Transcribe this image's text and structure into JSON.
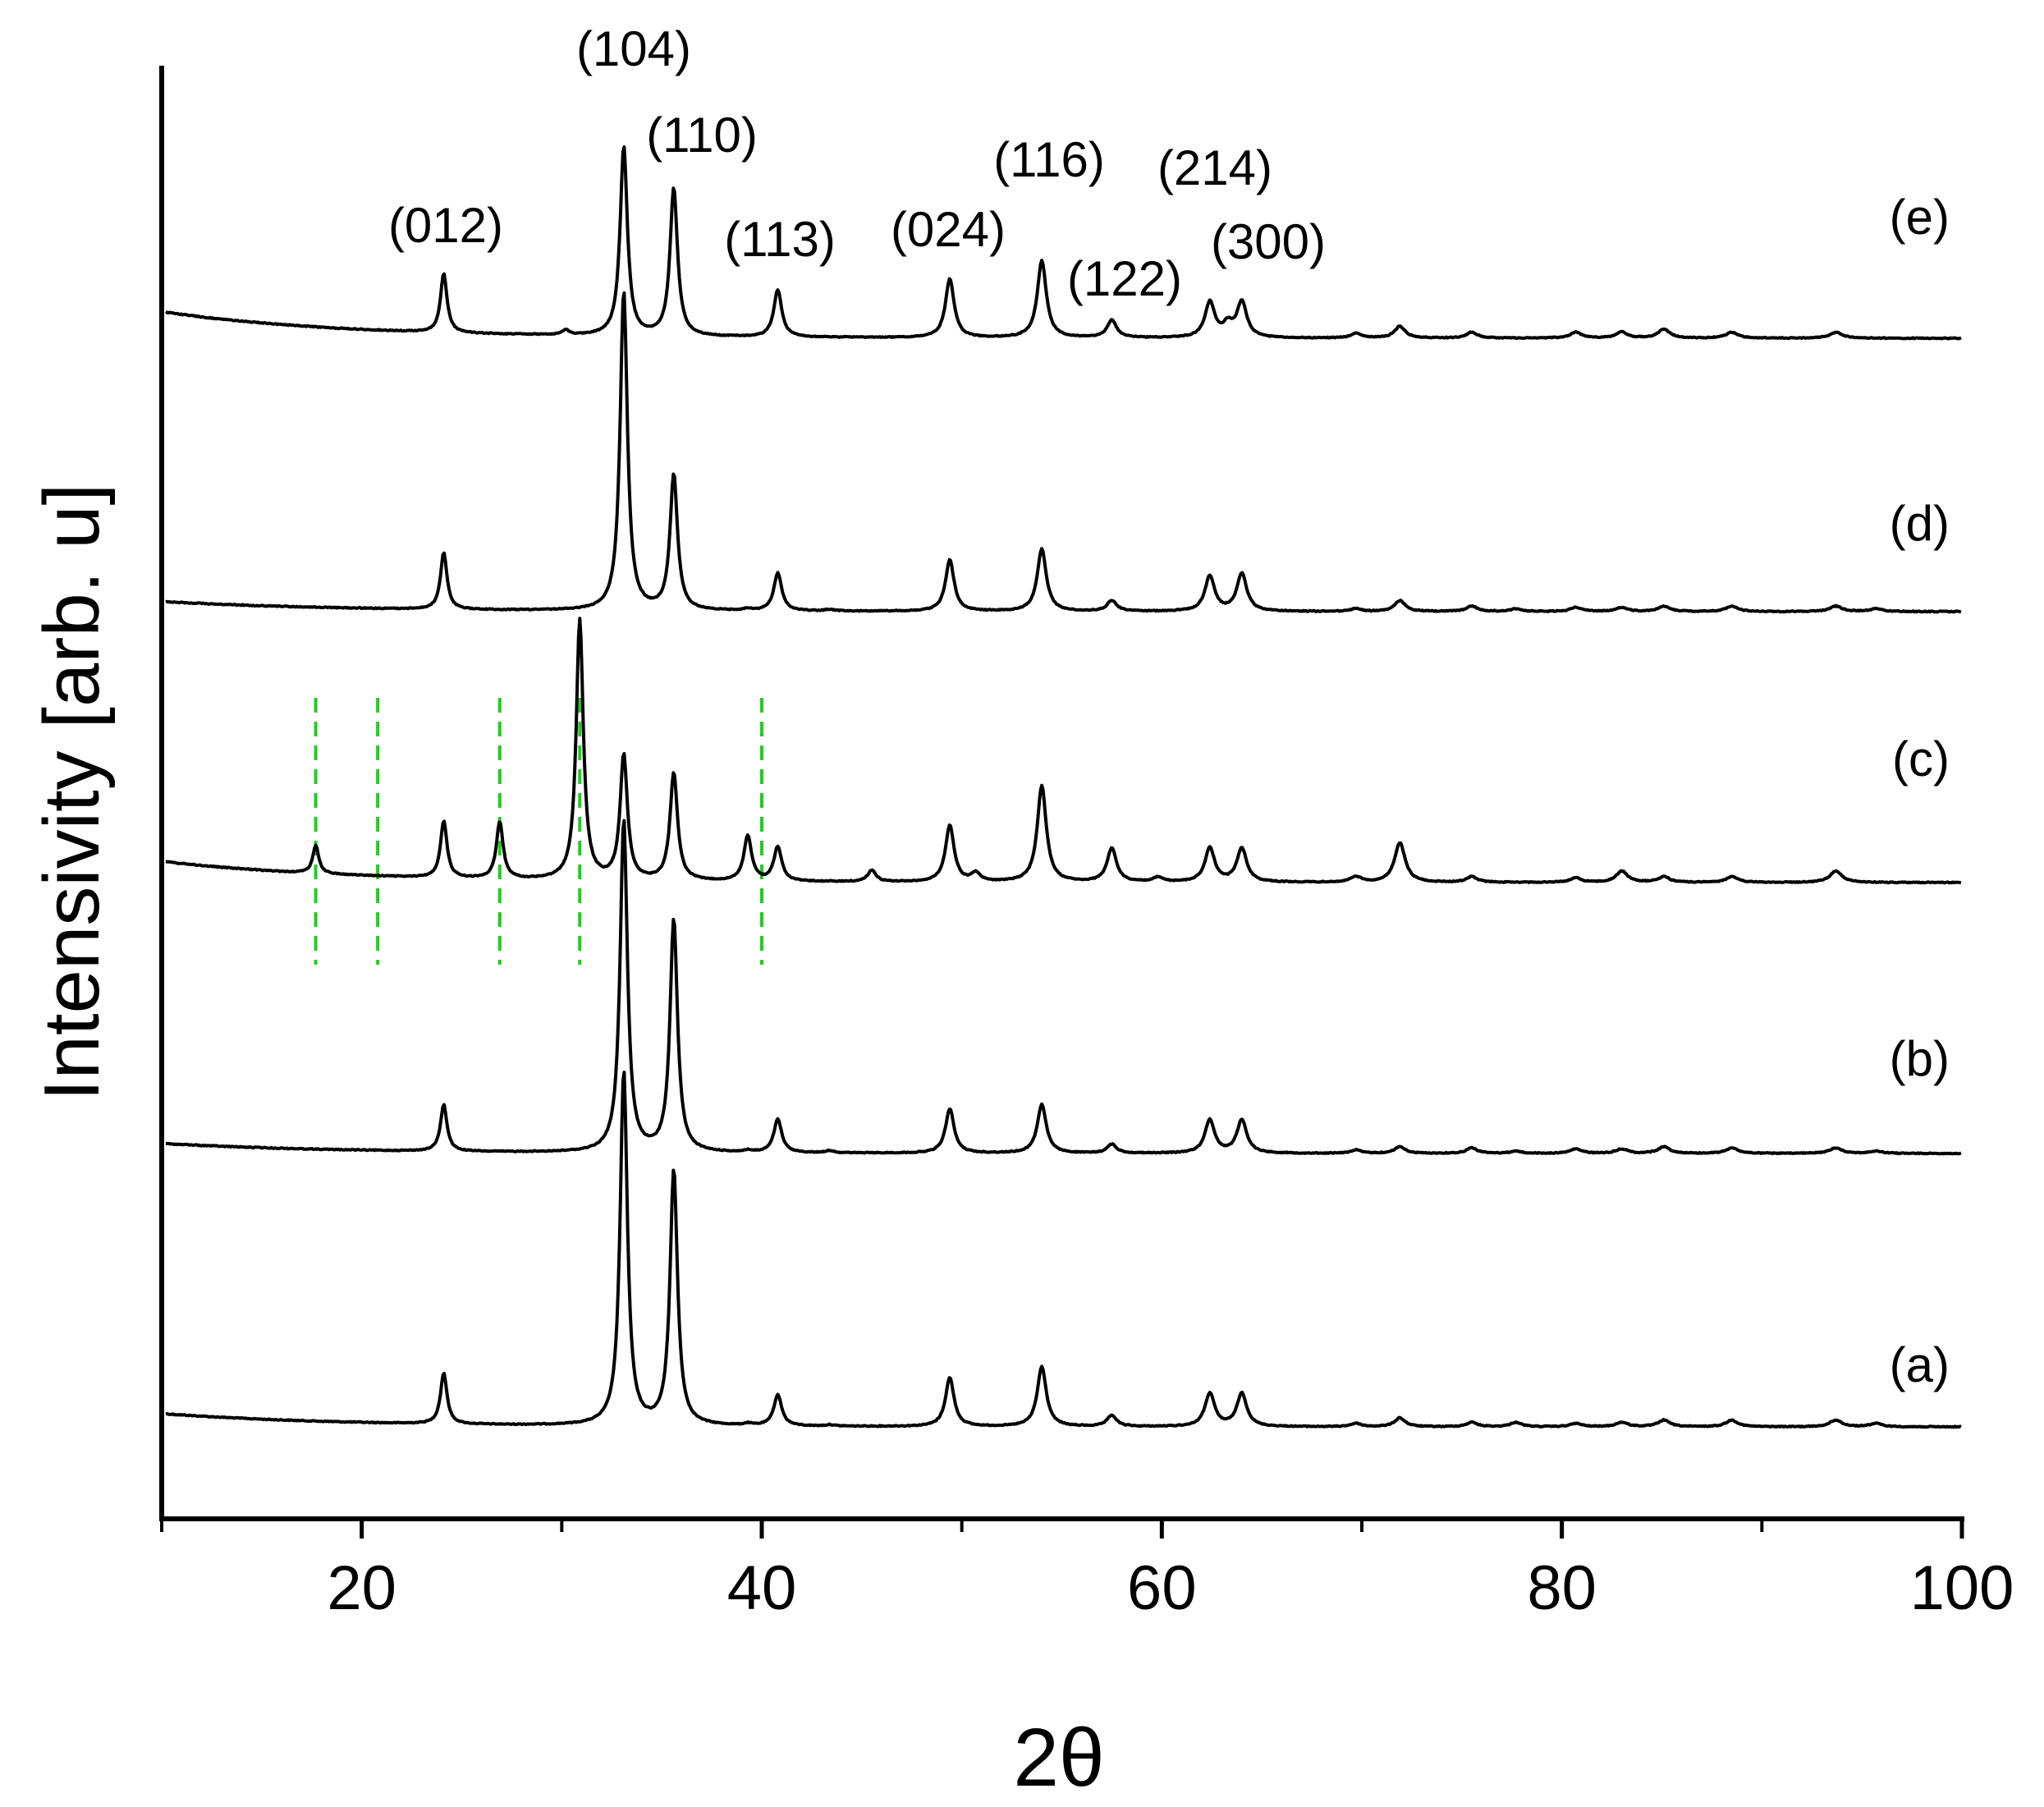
{
  "chart_data": {
    "type": "line",
    "title": "",
    "xlabel": "2θ",
    "ylabel": "Intensivity [arb. u]",
    "xlim": [
      10,
      100
    ],
    "x_ticks": [
      20,
      40,
      60,
      80,
      100
    ],
    "x_minor_ticks": [
      10,
      30,
      50,
      70,
      90
    ],
    "y_ticks": [],
    "grid": false,
    "legend": "none",
    "line_color": "#000000",
    "marker_line_color": "#22cc22",
    "marker_lines_2theta": [
      17.7,
      20.8,
      26.9,
      30.9,
      40.0
    ],
    "reflections": [
      {
        "hkl": "(012)",
        "two_theta": 24.1
      },
      {
        "hkl": "(104)",
        "two_theta": 33.1
      },
      {
        "hkl": "(110)",
        "two_theta": 35.6
      },
      {
        "hkl": "(113)",
        "two_theta": 40.8
      },
      {
        "hkl": "(024)",
        "two_theta": 49.4
      },
      {
        "hkl": "(116)",
        "two_theta": 54.0
      },
      {
        "hkl": "(122)",
        "two_theta": 57.5
      },
      {
        "hkl": "(214)",
        "two_theta": 62.4
      },
      {
        "hkl": "(300)",
        "two_theta": 64.0
      }
    ],
    "series": [
      {
        "name": "(a)",
        "baseline_start": 0.8,
        "peaks": [
          [
            24.1,
            23
          ],
          [
            33.1,
            160
          ],
          [
            35.6,
            115
          ],
          [
            40.8,
            14
          ],
          [
            49.4,
            22
          ],
          [
            54.0,
            27
          ],
          [
            57.5,
            5
          ],
          [
            62.4,
            15
          ],
          [
            64.0,
            15
          ],
          [
            69.7,
            1.5
          ],
          [
            71.9,
            4
          ],
          [
            75.5,
            2
          ],
          [
            77.7,
            2
          ],
          [
            80.7,
            1.5
          ],
          [
            83.0,
            2
          ],
          [
            85.1,
            3
          ],
          [
            88.5,
            3
          ],
          [
            93.7,
            3
          ],
          [
            95.7,
            1.5
          ],
          [
            39.3,
            0.8
          ],
          [
            43.4,
            0.6
          ]
        ]
      },
      {
        "name": "(b)",
        "baseline_start": 0.6,
        "peaks": [
          [
            24.1,
            21
          ],
          [
            33.1,
            150
          ],
          [
            35.6,
            105
          ],
          [
            40.8,
            15
          ],
          [
            49.4,
            20
          ],
          [
            54.0,
            22
          ],
          [
            57.5,
            4
          ],
          [
            62.4,
            15
          ],
          [
            64.0,
            15
          ],
          [
            69.7,
            1.5
          ],
          [
            71.9,
            3
          ],
          [
            75.5,
            2.5
          ],
          [
            77.7,
            1
          ],
          [
            80.7,
            2
          ],
          [
            83.0,
            2
          ],
          [
            85.1,
            3
          ],
          [
            88.5,
            2.5
          ],
          [
            93.7,
            2.5
          ],
          [
            95.7,
            1
          ],
          [
            39.3,
            0.8
          ],
          [
            43.4,
            1
          ]
        ]
      },
      {
        "name": "(c)",
        "baseline_start": 0.5,
        "peaks": [
          [
            17.7,
            5
          ],
          [
            24.1,
            10
          ],
          [
            26.9,
            10
          ],
          [
            30.9,
            46
          ],
          [
            33.1,
            22
          ],
          [
            35.6,
            19
          ],
          [
            39.3,
            8
          ],
          [
            40.8,
            6
          ],
          [
            45.5,
            2
          ],
          [
            49.4,
            10
          ],
          [
            50.7,
            1.5
          ],
          [
            54.0,
            17
          ],
          [
            57.5,
            6
          ],
          [
            59.8,
            0.8
          ],
          [
            62.4,
            6
          ],
          [
            64.0,
            6
          ],
          [
            69.7,
            1
          ],
          [
            71.9,
            7
          ],
          [
            75.5,
            1
          ],
          [
            80.7,
            0.8
          ],
          [
            83.0,
            2
          ],
          [
            85.1,
            1
          ],
          [
            88.5,
            1
          ],
          [
            93.7,
            2
          ]
        ]
      },
      {
        "name": "(d)",
        "baseline_start": 0.5,
        "peaks": [
          [
            24.1,
            21
          ],
          [
            33.1,
            118
          ],
          [
            35.6,
            50
          ],
          [
            40.8,
            14
          ],
          [
            49.4,
            19
          ],
          [
            54.0,
            23
          ],
          [
            57.5,
            4
          ],
          [
            62.4,
            13
          ],
          [
            64.0,
            14
          ],
          [
            69.7,
            1
          ],
          [
            71.9,
            4
          ],
          [
            75.5,
            2
          ],
          [
            77.7,
            1
          ],
          [
            80.7,
            1.5
          ],
          [
            83.0,
            1.5
          ],
          [
            85.1,
            2
          ],
          [
            88.5,
            2
          ],
          [
            93.7,
            2
          ],
          [
            95.7,
            1
          ],
          [
            39.3,
            0.6
          ],
          [
            43.4,
            0.6
          ]
        ]
      },
      {
        "name": "(e)",
        "baseline_start": 0.6,
        "peaks": [
          [
            24.1,
            10
          ],
          [
            33.1,
            32
          ],
          [
            35.6,
            25
          ],
          [
            40.8,
            8
          ],
          [
            49.4,
            10
          ],
          [
            54.0,
            13
          ],
          [
            57.5,
            3
          ],
          [
            62.4,
            6
          ],
          [
            64.0,
            6
          ],
          [
            63.3,
            2
          ],
          [
            69.7,
            0.8
          ],
          [
            71.9,
            2
          ],
          [
            75.5,
            1
          ],
          [
            80.7,
            1
          ],
          [
            83.0,
            1
          ],
          [
            85.1,
            1.5
          ],
          [
            88.5,
            1
          ],
          [
            93.7,
            1
          ],
          [
            30.2,
            0.8
          ]
        ]
      }
    ]
  }
}
